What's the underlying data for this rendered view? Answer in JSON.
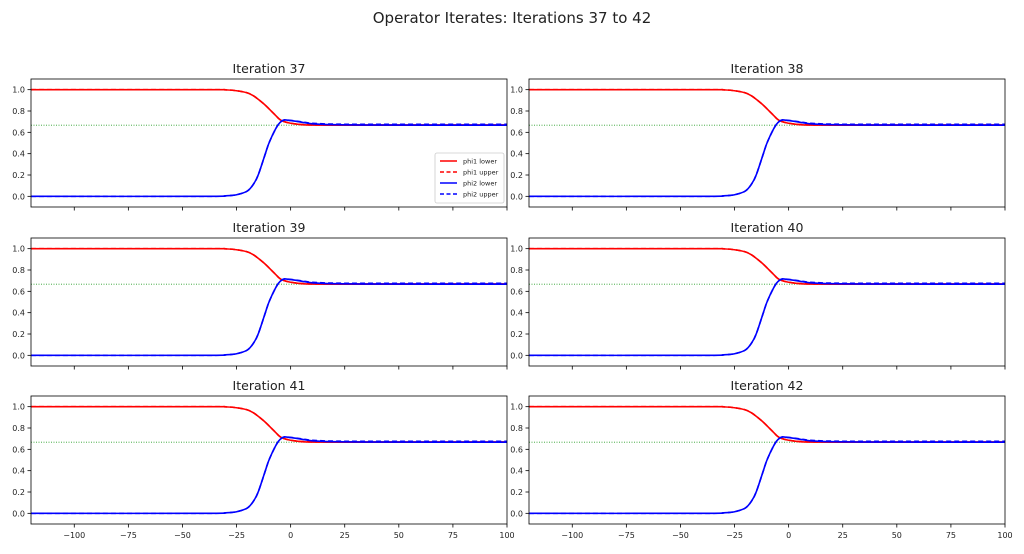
{
  "chart_data": {
    "type": "line",
    "title": "Operator Iterates: Iterations 37 to 42",
    "xlim": [
      -120,
      100
    ],
    "ylim": [
      -0.1,
      1.1
    ],
    "xticks": [
      -100,
      -75,
      -50,
      -25,
      0,
      25,
      50,
      75,
      100
    ],
    "xtick_labels": [
      "−100",
      "−75",
      "−50",
      "−25",
      "0",
      "25",
      "50",
      "75",
      "100"
    ],
    "yticks": [
      0.0,
      0.2,
      0.4,
      0.6,
      0.8,
      1.0
    ],
    "ytick_labels": [
      "0.0",
      "0.2",
      "0.4",
      "0.6",
      "0.8",
      "1.0"
    ],
    "reference_line": {
      "y": 0.667,
      "color": "#2ca02c",
      "style": "dotted"
    },
    "legend": {
      "placement": "lower-right",
      "panel": 0
    },
    "x": [
      -120,
      -40,
      -30,
      -25,
      -20,
      -17,
      -15,
      -12,
      -10,
      -7,
      -5,
      -3,
      0,
      5,
      10,
      20,
      40,
      100
    ],
    "series": [
      {
        "name": "phi1 lower",
        "color": "#ff0000",
        "dash": false,
        "values": [
          1,
          1,
          0.998,
          0.99,
          0.97,
          0.94,
          0.91,
          0.86,
          0.82,
          0.76,
          0.72,
          0.7,
          0.685,
          0.672,
          0.668,
          0.667,
          0.667,
          0.667
        ]
      },
      {
        "name": "phi1 upper",
        "color": "#ff0000",
        "dash": true,
        "values": [
          1,
          1,
          0.998,
          0.99,
          0.97,
          0.94,
          0.91,
          0.86,
          0.82,
          0.76,
          0.72,
          0.7,
          0.686,
          0.674,
          0.67,
          0.669,
          0.669,
          0.669
        ]
      },
      {
        "name": "phi2 lower",
        "color": "#0000ff",
        "dash": false,
        "values": [
          0,
          0,
          0.005,
          0.015,
          0.05,
          0.12,
          0.2,
          0.38,
          0.5,
          0.63,
          0.69,
          0.715,
          0.71,
          0.695,
          0.68,
          0.672,
          0.668,
          0.667
        ]
      },
      {
        "name": "phi2 upper",
        "color": "#0000ff",
        "dash": true,
        "values": [
          0,
          0,
          0.005,
          0.015,
          0.05,
          0.12,
          0.2,
          0.38,
          0.5,
          0.63,
          0.69,
          0.716,
          0.712,
          0.698,
          0.685,
          0.677,
          0.675,
          0.675
        ]
      }
    ],
    "panels": [
      {
        "title": "Iteration 37"
      },
      {
        "title": "Iteration 38"
      },
      {
        "title": "Iteration 39"
      },
      {
        "title": "Iteration 40"
      },
      {
        "title": "Iteration 41"
      },
      {
        "title": "Iteration 42"
      }
    ]
  }
}
